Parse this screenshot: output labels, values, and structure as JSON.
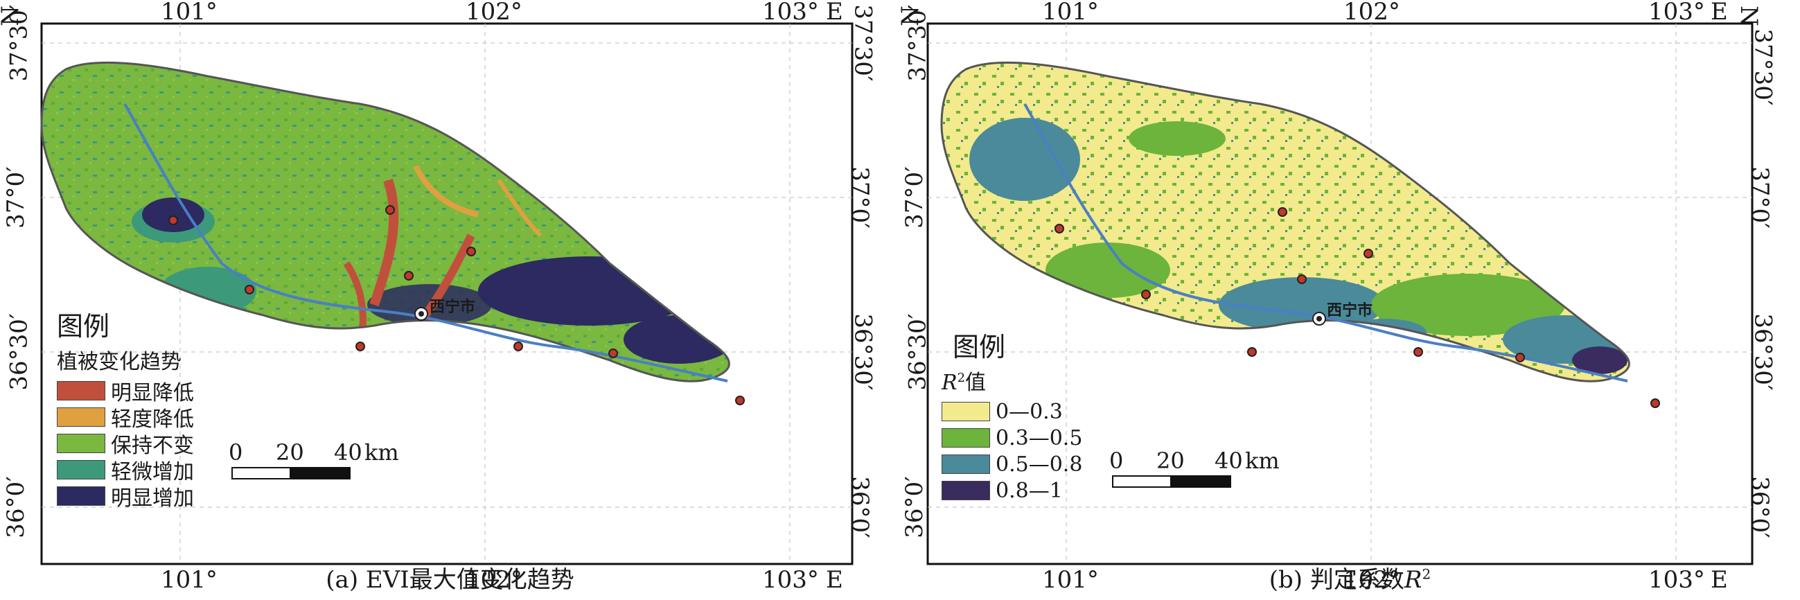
{
  "panel_a": {
    "caption": "(a) EVI最大值变化趋势",
    "top_labels": {
      "n": "N",
      "lon1": "101°",
      "lon2": "102°",
      "lon3": "103°",
      "e": "E"
    },
    "bottom_labels": {
      "lon1": "101°",
      "lon2": "102°",
      "lon3": "103°",
      "e": "E"
    },
    "lat_labels": [
      "37°30′",
      "37°0′",
      "36°30′",
      "36°0′"
    ],
    "city_label": "西宁市",
    "legend": {
      "title": "图例",
      "subtitle": "植被变化趋势",
      "items": [
        {
          "label": "明显降低",
          "color": "#c0503c"
        },
        {
          "label": "轻度降低",
          "color": "#e0a040"
        },
        {
          "label": "保持不变",
          "color": "#7ab840"
        },
        {
          "label": "轻微增加",
          "color": "#3c9a7a"
        },
        {
          "label": "明显增加",
          "color": "#2c2a60"
        }
      ]
    },
    "scale": {
      "t0": "0",
      "t1": "20",
      "t2": "40",
      "unit": "km"
    }
  },
  "panel_b": {
    "caption_prefix": "(b) 判定系数",
    "caption_symbol": "R",
    "caption_sup": "2",
    "top_labels": {
      "n": "N",
      "lon1": "101°",
      "lon2": "102°",
      "lon3": "103°",
      "e": "E"
    },
    "bottom_labels": {
      "lon1": "101°",
      "lon2": "102°",
      "lon3": "103°",
      "e": "E"
    },
    "lat_labels": [
      "37°30′",
      "37°0′",
      "36°30′",
      "36°0′"
    ],
    "city_label": "西宁市",
    "legend": {
      "title": "图例",
      "subtitle_symbol": "R",
      "subtitle_sup": "2",
      "subtitle_suffix": "值",
      "items": [
        {
          "label": "0—0.3",
          "color": "#f2ea8c"
        },
        {
          "label": "0.3—0.5",
          "color": "#6cb43c"
        },
        {
          "label": "0.5—0.8",
          "color": "#4a8a9a"
        },
        {
          "label": "0.8—1",
          "color": "#3a2c5e"
        }
      ]
    },
    "scale": {
      "t0": "0",
      "t1": "20",
      "t2": "40",
      "unit": "km"
    }
  }
}
